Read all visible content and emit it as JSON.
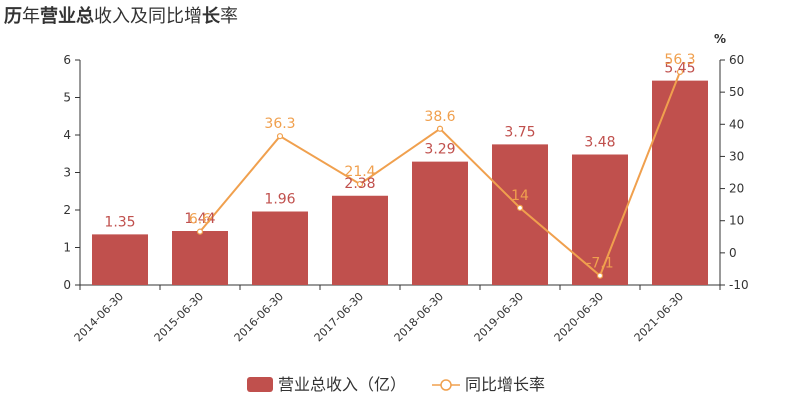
{
  "title": "历年营业总收入及同比增长率",
  "chart_data": {
    "type": "bar",
    "categories": [
      "2014-06-30",
      "2015-06-30",
      "2016-06-30",
      "2017-06-30",
      "2018-06-30",
      "2019-06-30",
      "2020-06-30",
      "2021-06-30"
    ],
    "series": [
      {
        "name": "营业总收入（亿）",
        "type": "bar",
        "axis": "left",
        "values": [
          1.35,
          1.44,
          1.96,
          2.38,
          3.29,
          3.75,
          3.48,
          5.45
        ],
        "labels": [
          "1.35",
          "1.44",
          "1.96",
          "2.38",
          "3.29",
          "3.75",
          "3.48",
          "5.45"
        ],
        "color": "#c0504d"
      },
      {
        "name": "同比增长率",
        "type": "line",
        "axis": "right",
        "values": [
          null,
          6.6,
          36.3,
          21.4,
          38.6,
          14,
          -7.1,
          56.3
        ],
        "labels": [
          "",
          "6.6",
          "36.3",
          "21.4",
          "38.6",
          "14",
          "-7.1",
          "56.3"
        ],
        "color": "#f0a04e"
      }
    ],
    "y_left": {
      "ylim": [
        0,
        6
      ],
      "ticks": [
        "0",
        "1",
        "2",
        "3",
        "4",
        "5",
        "6"
      ]
    },
    "y_right": {
      "ylim": [
        -10,
        60
      ],
      "ticks": [
        "-10",
        "0",
        "10",
        "20",
        "30",
        "40",
        "50",
        "60"
      ],
      "unit": "%"
    },
    "grid": false,
    "legend_position": "bottom-center"
  }
}
